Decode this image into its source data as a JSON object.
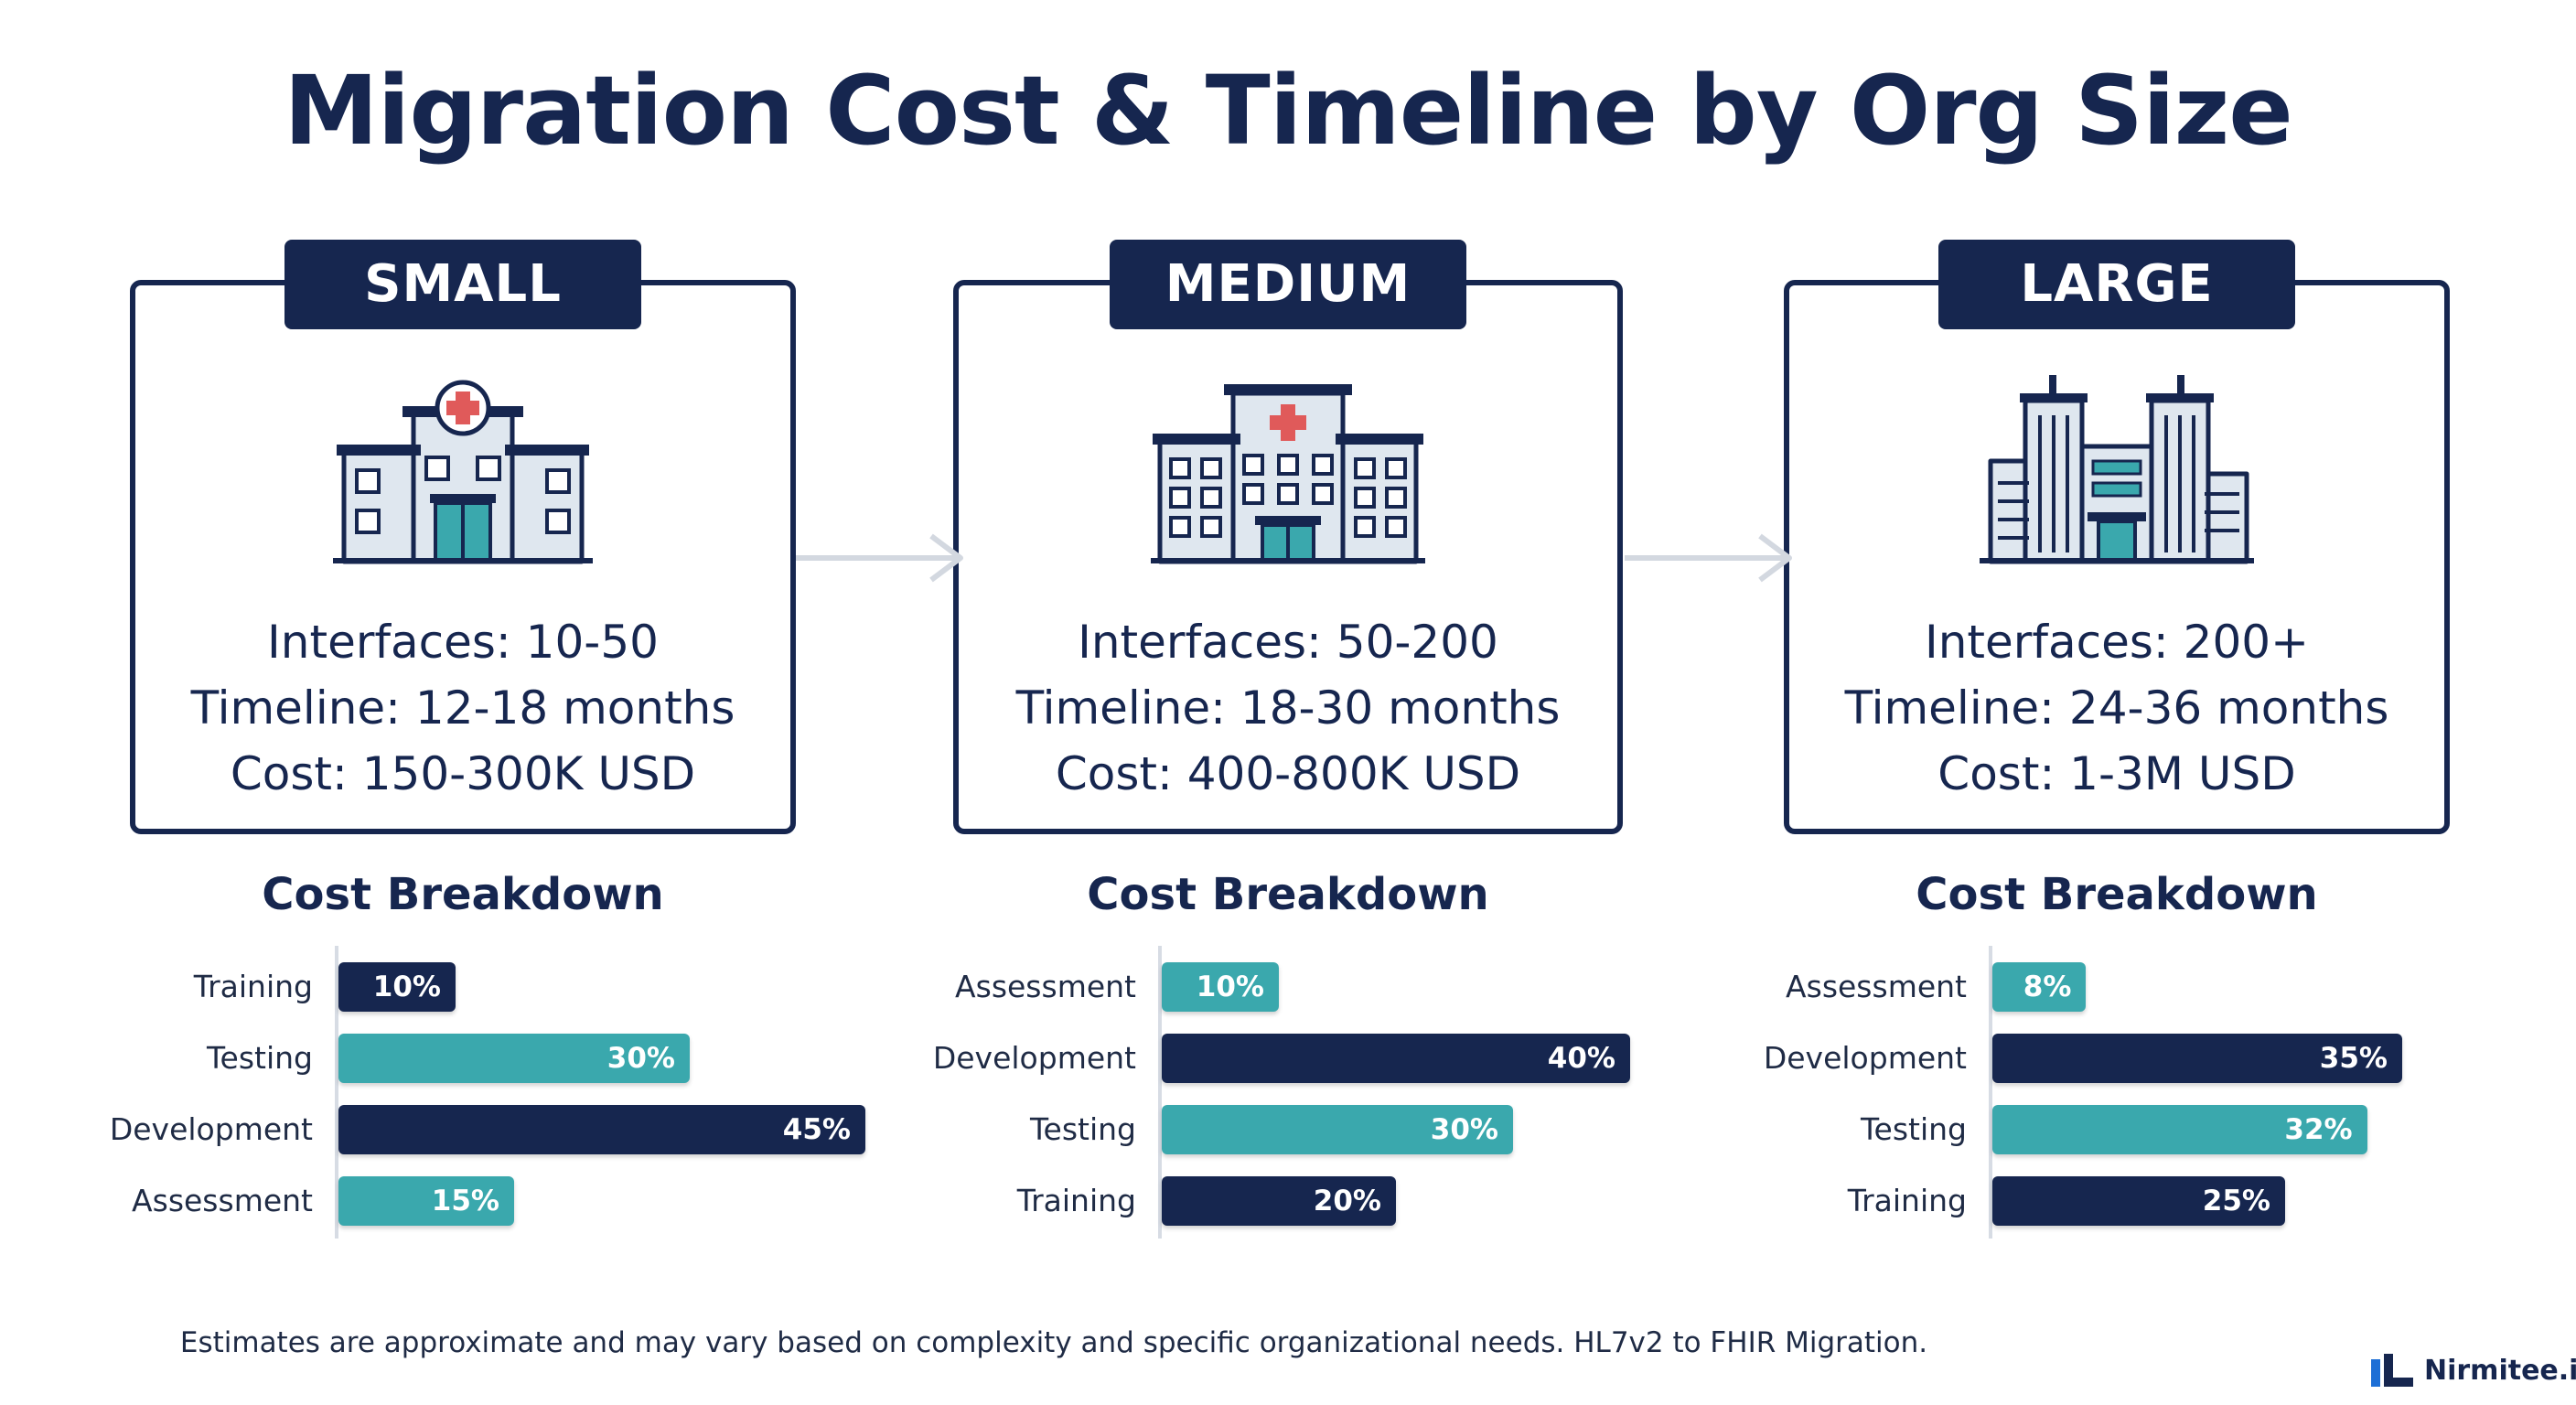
{
  "title": "Migration Cost & Timeline by Org Size",
  "colors": {
    "navy": "#16264f",
    "teal": "#3aa8ad",
    "accent_red": "#e05a5a",
    "window_fill": "#dfe7ef"
  },
  "tiers": [
    {
      "label": "SMALL",
      "interfaces": "Interfaces: 10-50",
      "timeline": "Timeline: 12-18 months",
      "cost": "Cost: 150-300K USD",
      "icon": "small-hospital-icon",
      "breakdown_title": "Cost Breakdown"
    },
    {
      "label": "MEDIUM",
      "interfaces": "Interfaces: 50-200",
      "timeline": "Timeline: 18-30 months",
      "cost": "Cost: 400-800K USD",
      "icon": "medium-hospital-icon",
      "breakdown_title": "Cost Breakdown"
    },
    {
      "label": "LARGE",
      "interfaces": "Interfaces: 200+",
      "timeline": "Timeline: 24-36 months",
      "cost": "Cost: 1-3M USD",
      "icon": "hospital-campus-icon",
      "breakdown_title": "Cost Breakdown"
    }
  ],
  "chart_data": [
    {
      "type": "bar",
      "orientation": "horizontal",
      "title": "Cost Breakdown",
      "categories": [
        "Training",
        "Testing",
        "Development",
        "Assessment"
      ],
      "values": [
        10,
        30,
        45,
        15
      ],
      "value_labels": [
        "10%",
        "30%",
        "45%",
        "15%"
      ],
      "bar_colors": [
        "#16264f",
        "#3aa8ad",
        "#16264f",
        "#3aa8ad"
      ],
      "xlim": [
        0,
        50
      ]
    },
    {
      "type": "bar",
      "orientation": "horizontal",
      "title": "Cost Breakdown",
      "categories": [
        "Assessment",
        "Development",
        "Testing",
        "Training"
      ],
      "values": [
        10,
        40,
        30,
        20
      ],
      "value_labels": [
        "10%",
        "40%",
        "30%",
        "20%"
      ],
      "bar_colors": [
        "#3aa8ad",
        "#16264f",
        "#3aa8ad",
        "#16264f"
      ],
      "xlim": [
        0,
        50
      ]
    },
    {
      "type": "bar",
      "orientation": "horizontal",
      "title": "Cost Breakdown",
      "categories": [
        "Assessment",
        "Development",
        "Testing",
        "Training"
      ],
      "values": [
        8,
        35,
        32,
        25
      ],
      "value_labels": [
        "8%",
        "35%",
        "32%",
        "25%"
      ],
      "bar_colors": [
        "#3aa8ad",
        "#16264f",
        "#3aa8ad",
        "#16264f"
      ],
      "xlim": [
        0,
        50
      ]
    }
  ],
  "footnote": "Estimates are approximate and may vary based on complexity and specific organizational needs. HL7v2 to FHIR Migration.",
  "brand": {
    "name": "Nirmitee.io",
    "icon": "nirmitee-logo-icon"
  }
}
